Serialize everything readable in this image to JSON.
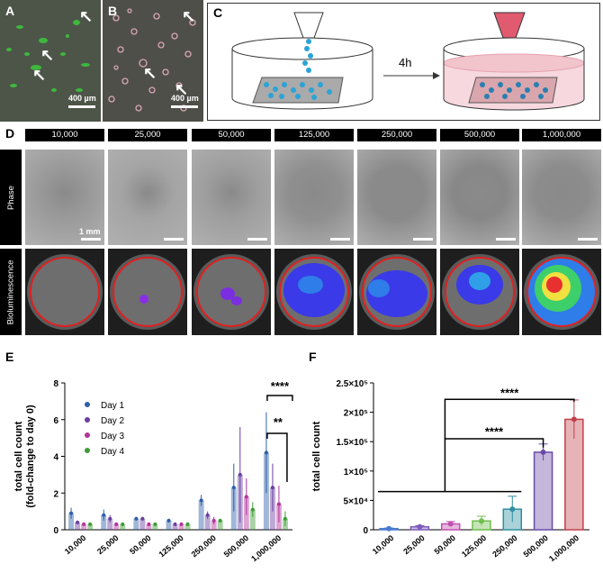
{
  "panels": {
    "a": {
      "label": "A",
      "scale": "400 µm"
    },
    "b": {
      "label": "B",
      "scale": "400 µm"
    },
    "c": {
      "label": "C",
      "time": "4h"
    },
    "d": {
      "label": "D",
      "columns": [
        "10,000",
        "25,000",
        "50,000",
        "125,000",
        "250,000",
        "500,000",
        "1,000,000"
      ],
      "row_phase": "Phase",
      "row_biolum": "Bioluminescence",
      "scale": "1 mm"
    },
    "e": {
      "label": "E"
    },
    "f": {
      "label": "F"
    }
  },
  "chart_data": [
    {
      "type": "bar",
      "ylabel": "total cell count\n(fold-change to day 0)",
      "categories": [
        "10,000",
        "25,000",
        "50,000",
        "125,000",
        "250,000",
        "500,000",
        "1,000,000"
      ],
      "ylim": [
        0,
        8
      ],
      "yticks": [
        0,
        2,
        4,
        6,
        8
      ],
      "series": [
        {
          "name": "Day 1",
          "color": "#2e5fa8",
          "values": [
            0.9,
            0.8,
            0.6,
            0.5,
            1.6,
            2.3,
            4.2
          ],
          "errors": [
            0.3,
            0.3,
            0.1,
            0.1,
            0.3,
            1.3,
            2.2
          ]
        },
        {
          "name": "Day 2",
          "color": "#6a3fa0",
          "values": [
            0.4,
            0.6,
            0.6,
            0.3,
            0.8,
            3.0,
            2.3
          ],
          "errors": [
            0.1,
            0.2,
            0.1,
            0.1,
            0.2,
            2.6,
            1.3
          ]
        },
        {
          "name": "Day 3",
          "color": "#b3339b",
          "values": [
            0.3,
            0.3,
            0.3,
            0.3,
            0.5,
            1.8,
            1.4
          ],
          "errors": [
            0.1,
            0.1,
            0.1,
            0.1,
            0.2,
            1.0,
            1.0
          ]
        },
        {
          "name": "Day 4",
          "color": "#3f9c35",
          "values": [
            0.3,
            0.3,
            0.3,
            0.3,
            0.5,
            1.1,
            0.6
          ],
          "errors": [
            0.1,
            0.1,
            0.1,
            0.1,
            0.1,
            0.4,
            0.4
          ]
        }
      ],
      "significance": [
        "****",
        "**"
      ]
    },
    {
      "type": "bar",
      "ylabel": "total cell count",
      "categories": [
        "10,000",
        "25,000",
        "50,000",
        "125,000",
        "250,000",
        "500,000",
        "1,000,000"
      ],
      "yticks": [
        "0",
        "5×10⁴",
        "1×10⁵",
        "1.5×10⁵",
        "2×10⁵",
        "2.5×10⁵"
      ],
      "ylim": [
        0,
        250000
      ],
      "values": [
        2000,
        5000,
        10000,
        15000,
        35000,
        132000,
        188000
      ],
      "errors": [
        1000,
        2000,
        4000,
        8000,
        22000,
        14000,
        33000
      ],
      "colors": [
        "#4a7bd0",
        "#7d5bb8",
        "#c04fb0",
        "#6fbf4d",
        "#2f8fa0",
        "#6a4aa8",
        "#c0404a"
      ],
      "significance": [
        "****",
        "****"
      ]
    }
  ]
}
